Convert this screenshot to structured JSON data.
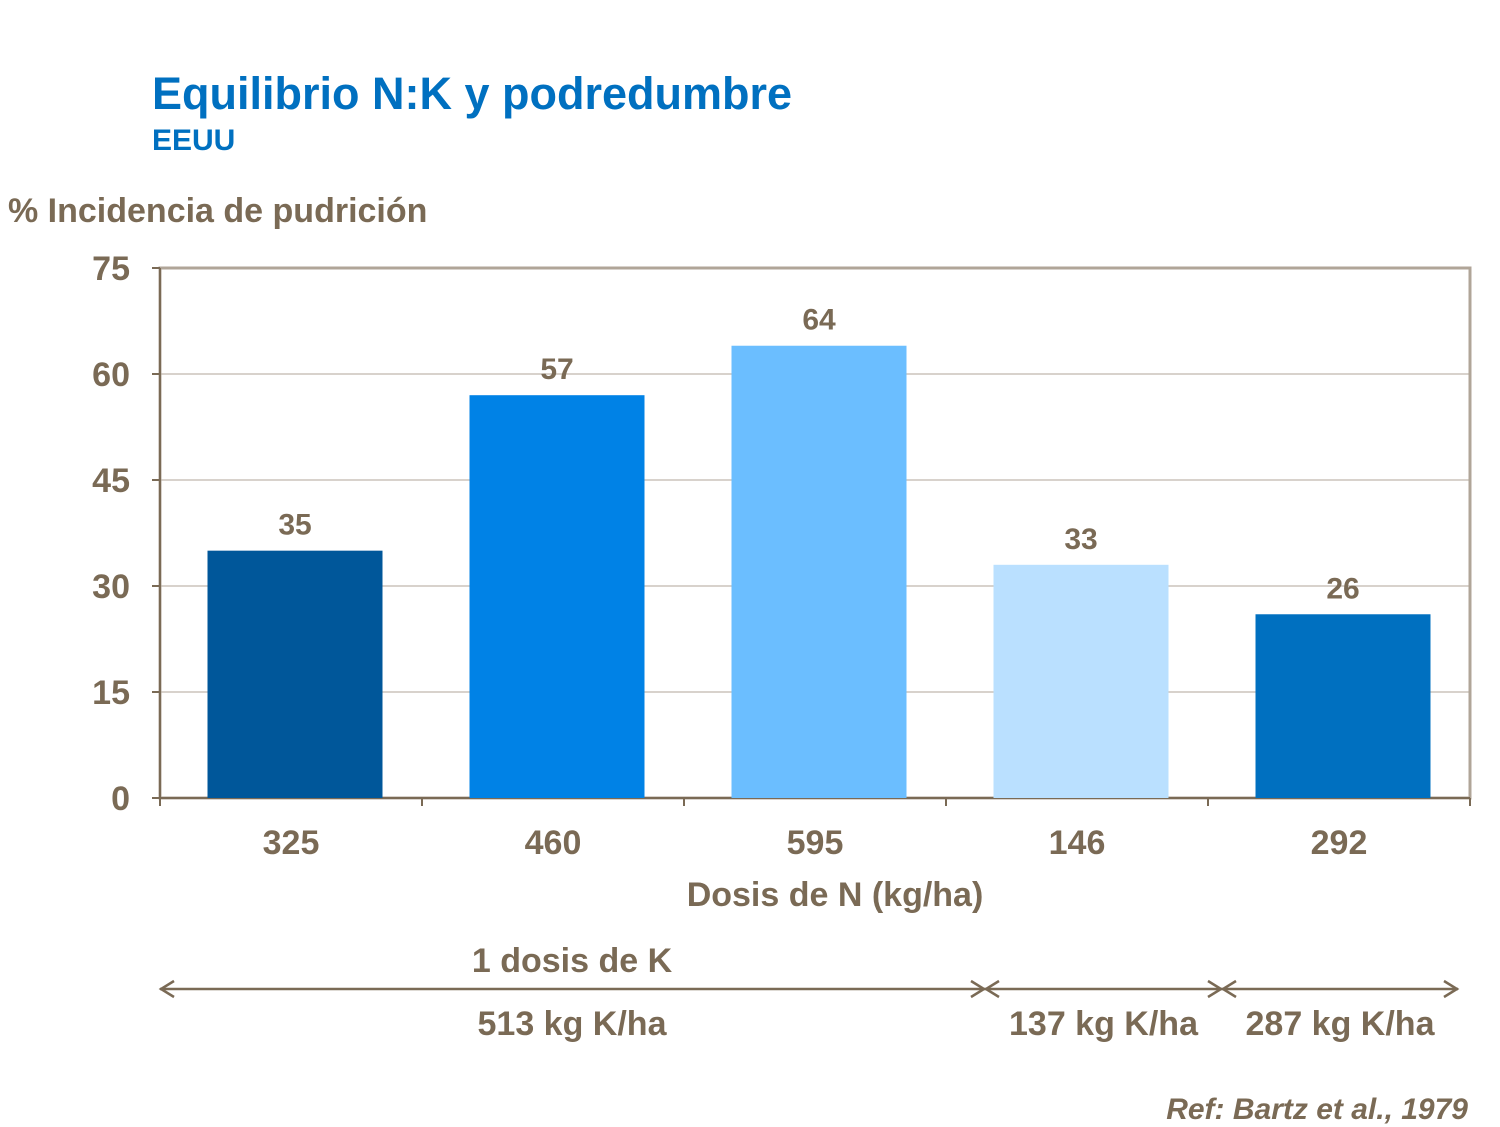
{
  "chart_data": {
    "type": "bar",
    "title": "Equilibrio N:K y podredumbre",
    "subtitle": "EEUU",
    "ylabel": "% Incidencia de pudrición",
    "xlabel": "Dosis de N (kg/ha)",
    "categories": [
      "325",
      "460",
      "595",
      "146",
      "292"
    ],
    "values": [
      35,
      57,
      64,
      33,
      26
    ],
    "colors": [
      "#00579A",
      "#0082E6",
      "#6BBEFF",
      "#BAE0FF",
      "#0070C0"
    ],
    "ylim": [
      0,
      75
    ],
    "yticks": [
      0,
      15,
      30,
      45,
      60,
      75
    ],
    "grid": true,
    "groups": [
      {
        "header": "1 dosis de K",
        "label": "513 kg K/ha",
        "categories": [
          "325",
          "460",
          "595"
        ]
      },
      {
        "header": "",
        "label": "137 kg K/ha",
        "categories": [
          "146"
        ]
      },
      {
        "header": "",
        "label": "287 kg K/ha",
        "categories": [
          "292"
        ]
      }
    ],
    "reference": "Ref: Bartz et al., 1979"
  }
}
